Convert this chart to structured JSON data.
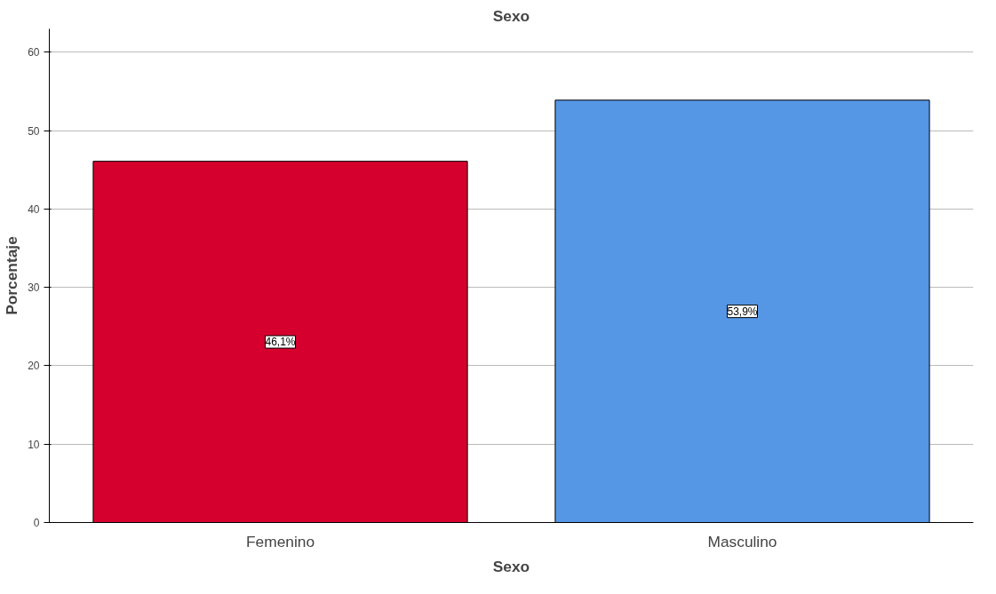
{
  "chart_data": {
    "type": "bar",
    "title": "Sexo",
    "xlabel": "Sexo",
    "ylabel": "Porcentaje",
    "categories": [
      "Femenino",
      "Masculino"
    ],
    "values": [
      46.1,
      53.9
    ],
    "colors": [
      "#d5002e",
      "#5596e5"
    ],
    "value_labels": [
      "46,1%",
      "53,9%"
    ],
    "ylim": [
      0,
      63
    ],
    "yticks": [
      0,
      10,
      20,
      30,
      40,
      50,
      60
    ],
    "grid": "y"
  }
}
